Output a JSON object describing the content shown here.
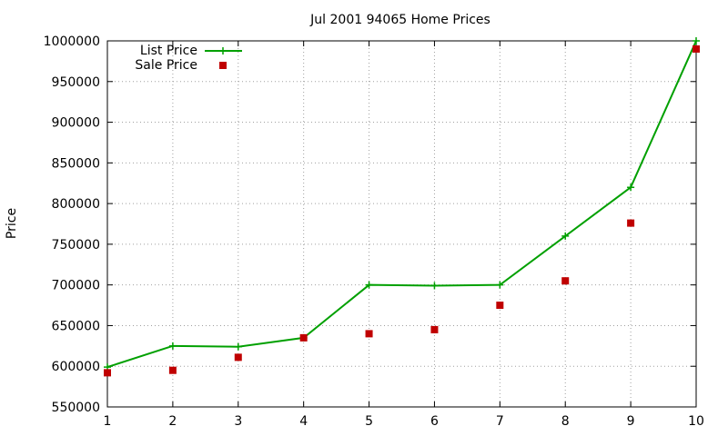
{
  "chart_data": {
    "type": "line",
    "title": "Jul 2001 94065 Home Prices",
    "xlabel": "",
    "ylabel": "Price",
    "x": [
      1,
      2,
      3,
      4,
      5,
      6,
      7,
      8,
      9,
      10
    ],
    "xlim": [
      1,
      10
    ],
    "ylim": [
      550000,
      1000000
    ],
    "xticks": [
      1,
      2,
      3,
      4,
      5,
      6,
      7,
      8,
      9,
      10
    ],
    "yticks": [
      550000,
      600000,
      650000,
      700000,
      750000,
      800000,
      850000,
      900000,
      950000,
      1000000
    ],
    "grid": true,
    "legend_position": "top-left",
    "series": [
      {
        "name": "List Price",
        "style": "line+plus",
        "color": "#00a000",
        "values": [
          599000,
          625000,
          624000,
          635000,
          700000,
          699000,
          700000,
          760000,
          820000,
          1000000
        ]
      },
      {
        "name": "Sale Price",
        "style": "square-points",
        "color": "#c00000",
        "values": [
          592000,
          595000,
          611000,
          635000,
          640000,
          645000,
          675000,
          705000,
          776000,
          990000
        ]
      }
    ]
  }
}
